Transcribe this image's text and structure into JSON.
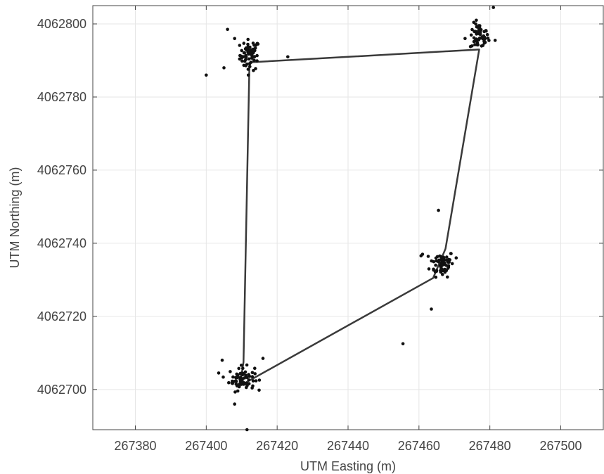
{
  "chart_data": {
    "type": "scatter",
    "title": "",
    "xlabel": "UTM Easting (m)",
    "ylabel": "UTM Northing (m)",
    "xlim": [
      267368,
      267512
    ],
    "ylim": [
      4062689,
      4062805
    ],
    "xticks": [
      267380,
      267400,
      267420,
      267440,
      267460,
      267480,
      267500
    ],
    "yticks": [
      4062700,
      4062720,
      4062740,
      4062760,
      4062780,
      4062800
    ],
    "grid": true,
    "colors": {
      "points": "#111111",
      "line": "#3a3a3a",
      "grid": "#e6e6e6",
      "axis": "#444444"
    },
    "series": [
      {
        "type": "line",
        "points": [
          [
            267412.2,
            4062789.5
          ],
          [
            267477.0,
            4062793.0
          ],
          [
            267467.5,
            4062738.5
          ],
          [
            267464.0,
            4062730.5
          ],
          [
            267409.5,
            4062701.0
          ],
          [
            267410.5,
            4062707.5
          ],
          [
            267412.2,
            4062789.5
          ]
        ]
      },
      {
        "type": "scatter",
        "clusters": [
          {
            "center": [
              267412.3,
              4062791.5
            ],
            "spread": [
              1.4,
              2.1
            ],
            "count": 65
          },
          {
            "center": [
              267477.0,
              4062796.5
            ],
            "spread": [
              1.3,
              1.8
            ],
            "count": 55
          },
          {
            "center": [
              267466.5,
              4062734.5
            ],
            "spread": [
              1.7,
              1.8
            ],
            "count": 65
          },
          {
            "center": [
              267410.0,
              4062703.0
            ],
            "spread": [
              1.8,
              1.6
            ],
            "count": 70
          }
        ],
        "points": [
          [
            267406.0,
            4062798.5
          ],
          [
            267400.0,
            4062786.0
          ],
          [
            267405.0,
            4062788.0
          ],
          [
            267423.0,
            4062791.0
          ],
          [
            267408.0,
            4062796.0
          ],
          [
            267481.0,
            4062804.5
          ],
          [
            267465.5,
            4062749.0
          ],
          [
            267463.5,
            4062722.0
          ],
          [
            267455.5,
            4062712.5
          ],
          [
            267404.5,
            4062708.0
          ],
          [
            267408.0,
            4062696.0
          ],
          [
            267411.5,
            4062689.0
          ],
          [
            267416.0,
            4062708.5
          ],
          [
            267403.5,
            4062704.5
          ],
          [
            267470.5,
            4062736.0
          ],
          [
            267461.0,
            4062737.0
          ],
          [
            267473.0,
            4062796.0
          ],
          [
            267481.5,
            4062795.5
          ]
        ]
      }
    ]
  }
}
